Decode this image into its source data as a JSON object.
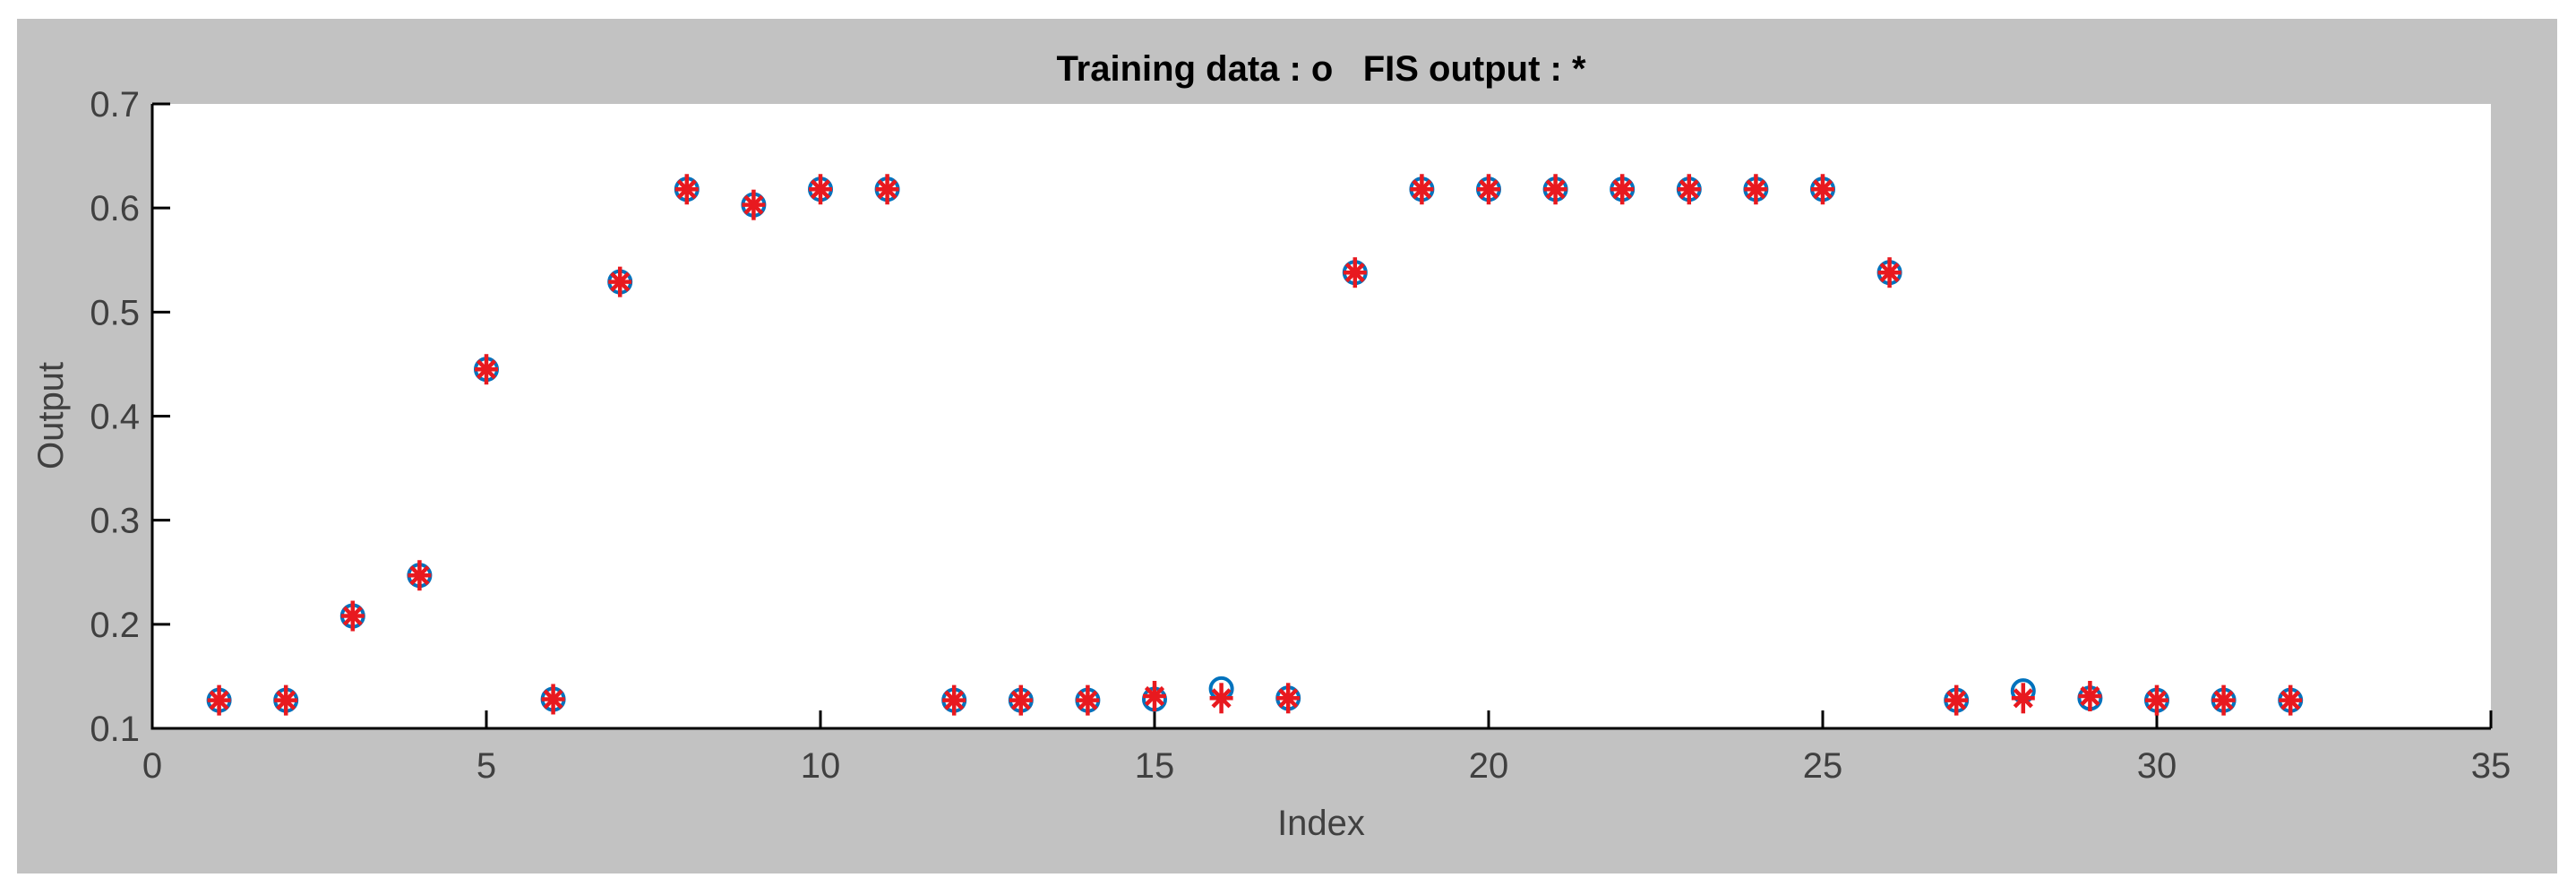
{
  "window": {
    "background": "#ffffff"
  },
  "figure": {
    "background": "#c2c2c2"
  },
  "style": {
    "plot_background": "#ffffff",
    "axis_color": "#000000",
    "tick_label_color": "#404040",
    "axis_label_color": "#404040",
    "title_color": "#000000"
  },
  "chart_data": {
    "type": "scatter",
    "title": "Training data : o   FIS output : *",
    "xlabel": "Index",
    "ylabel": "Output",
    "xlim": [
      0,
      35
    ],
    "ylim": [
      0.1,
      0.7
    ],
    "xticks": [
      0,
      5,
      10,
      15,
      20,
      25,
      30,
      35
    ],
    "yticks": [
      0.1,
      0.2,
      0.3,
      0.4,
      0.5,
      0.6,
      0.7
    ],
    "grid": false,
    "legend_position": "encoded-in-title",
    "x": [
      1,
      2,
      3,
      4,
      5,
      6,
      7,
      8,
      9,
      10,
      11,
      12,
      13,
      14,
      15,
      16,
      17,
      18,
      19,
      20,
      21,
      22,
      23,
      24,
      25,
      26,
      27,
      28,
      29,
      30,
      31,
      32
    ],
    "series": [
      {
        "name": "Training data",
        "marker": "o",
        "color": "#0072BD",
        "values": [
          0.127,
          0.127,
          0.208,
          0.247,
          0.445,
          0.128,
          0.529,
          0.618,
          0.603,
          0.618,
          0.618,
          0.127,
          0.127,
          0.127,
          0.128,
          0.138,
          0.129,
          0.538,
          0.618,
          0.618,
          0.618,
          0.618,
          0.618,
          0.618,
          0.618,
          0.538,
          0.127,
          0.136,
          0.129,
          0.127,
          0.127,
          0.127
        ]
      },
      {
        "name": "FIS output",
        "marker": "*",
        "color": "#E8191F",
        "values": [
          0.127,
          0.127,
          0.208,
          0.247,
          0.445,
          0.128,
          0.529,
          0.618,
          0.603,
          0.618,
          0.618,
          0.127,
          0.127,
          0.127,
          0.131,
          0.129,
          0.129,
          0.538,
          0.618,
          0.618,
          0.618,
          0.618,
          0.618,
          0.618,
          0.618,
          0.538,
          0.127,
          0.129,
          0.131,
          0.127,
          0.127,
          0.127
        ]
      }
    ]
  }
}
